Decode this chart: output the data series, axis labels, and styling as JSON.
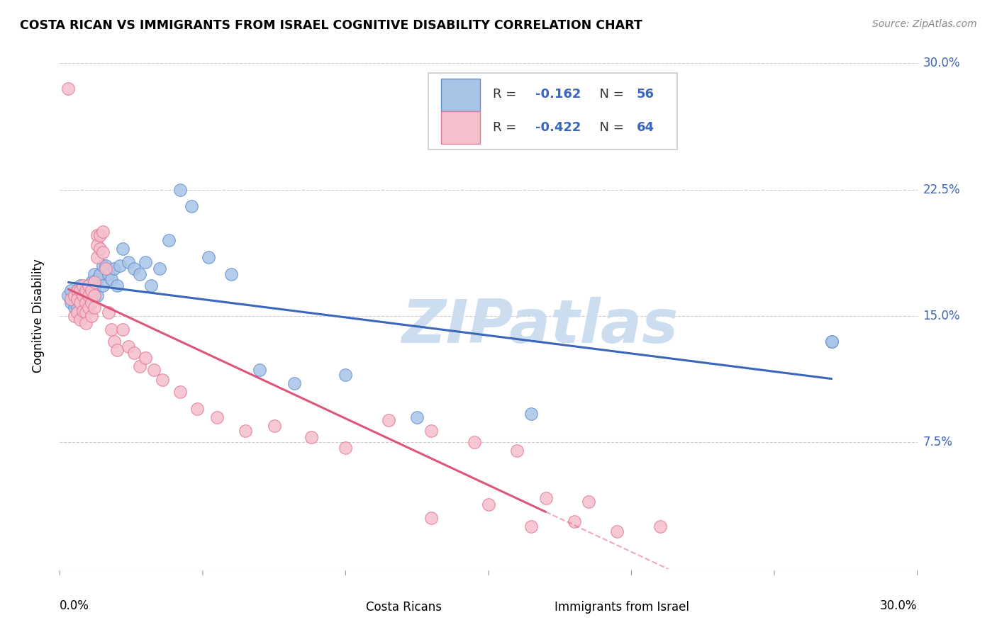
{
  "title": "COSTA RICAN VS IMMIGRANTS FROM ISRAEL COGNITIVE DISABILITY CORRELATION CHART",
  "source": "Source: ZipAtlas.com",
  "ylabel": "Cognitive Disability",
  "xlim": [
    0.0,
    0.3
  ],
  "ylim": [
    0.0,
    0.3
  ],
  "blue_R": "-0.162",
  "blue_N": "56",
  "pink_R": "-0.422",
  "pink_N": "64",
  "blue_face_color": "#aac4e8",
  "blue_edge_color": "#6090cc",
  "pink_face_color": "#f5bfcc",
  "pink_edge_color": "#e07898",
  "blue_line_color": "#3a66bb",
  "pink_line_color": "#dd5577",
  "text_blue_color": "#3a66bb",
  "watermark_color": "#ccddf0",
  "watermark": "ZIPatlas",
  "legend_label_blue": "Costa Ricans",
  "legend_label_pink": "Immigrants from Israel",
  "blue_scatter_x": [
    0.003,
    0.004,
    0.004,
    0.005,
    0.005,
    0.005,
    0.006,
    0.006,
    0.006,
    0.007,
    0.007,
    0.007,
    0.007,
    0.008,
    0.008,
    0.008,
    0.009,
    0.009,
    0.009,
    0.01,
    0.01,
    0.01,
    0.011,
    0.011,
    0.012,
    0.012,
    0.013,
    0.013,
    0.014,
    0.015,
    0.015,
    0.016,
    0.017,
    0.018,
    0.019,
    0.02,
    0.021,
    0.022,
    0.024,
    0.026,
    0.028,
    0.03,
    0.032,
    0.035,
    0.038,
    0.042,
    0.046,
    0.052,
    0.06,
    0.07,
    0.082,
    0.1,
    0.125,
    0.165,
    0.27,
    0.27
  ],
  "blue_scatter_y": [
    0.162,
    0.158,
    0.165,
    0.162,
    0.158,
    0.155,
    0.165,
    0.16,
    0.155,
    0.162,
    0.158,
    0.153,
    0.168,
    0.162,
    0.158,
    0.153,
    0.165,
    0.16,
    0.155,
    0.168,
    0.162,
    0.158,
    0.17,
    0.162,
    0.175,
    0.165,
    0.172,
    0.162,
    0.175,
    0.18,
    0.168,
    0.18,
    0.175,
    0.172,
    0.178,
    0.168,
    0.18,
    0.19,
    0.182,
    0.178,
    0.175,
    0.182,
    0.168,
    0.178,
    0.195,
    0.225,
    0.215,
    0.185,
    0.175,
    0.118,
    0.11,
    0.115,
    0.09,
    0.092,
    0.135,
    0.135
  ],
  "pink_scatter_x": [
    0.003,
    0.004,
    0.005,
    0.005,
    0.006,
    0.006,
    0.006,
    0.007,
    0.007,
    0.007,
    0.008,
    0.008,
    0.008,
    0.009,
    0.009,
    0.009,
    0.009,
    0.01,
    0.01,
    0.01,
    0.011,
    0.011,
    0.011,
    0.012,
    0.012,
    0.012,
    0.013,
    0.013,
    0.013,
    0.014,
    0.014,
    0.015,
    0.015,
    0.016,
    0.017,
    0.018,
    0.019,
    0.02,
    0.022,
    0.024,
    0.026,
    0.028,
    0.03,
    0.033,
    0.036,
    0.042,
    0.048,
    0.055,
    0.065,
    0.075,
    0.088,
    0.1,
    0.115,
    0.13,
    0.15,
    0.165,
    0.18,
    0.195,
    0.21,
    0.13,
    0.145,
    0.16,
    0.17,
    0.185
  ],
  "pink_scatter_y": [
    0.285,
    0.16,
    0.162,
    0.15,
    0.165,
    0.16,
    0.152,
    0.165,
    0.158,
    0.148,
    0.168,
    0.162,
    0.153,
    0.165,
    0.158,
    0.152,
    0.146,
    0.168,
    0.162,
    0.155,
    0.165,
    0.158,
    0.15,
    0.17,
    0.162,
    0.155,
    0.198,
    0.192,
    0.185,
    0.198,
    0.19,
    0.2,
    0.188,
    0.178,
    0.152,
    0.142,
    0.135,
    0.13,
    0.142,
    0.132,
    0.128,
    0.12,
    0.125,
    0.118,
    0.112,
    0.105,
    0.095,
    0.09,
    0.082,
    0.085,
    0.078,
    0.072,
    0.088,
    0.03,
    0.038,
    0.025,
    0.028,
    0.022,
    0.025,
    0.082,
    0.075,
    0.07,
    0.042,
    0.04
  ],
  "blue_line_x_start": 0.003,
  "blue_line_x_end": 0.27,
  "pink_line_x_start": 0.003,
  "pink_line_x_end": 0.17,
  "x_tick_positions": [
    0.0,
    0.05,
    0.1,
    0.15,
    0.2,
    0.25,
    0.3
  ],
  "y_tick_positions": [
    0.0,
    0.075,
    0.15,
    0.225,
    0.3
  ],
  "y_tick_labels": [
    "",
    "7.5%",
    "15.0%",
    "22.5%",
    "30.0%"
  ]
}
